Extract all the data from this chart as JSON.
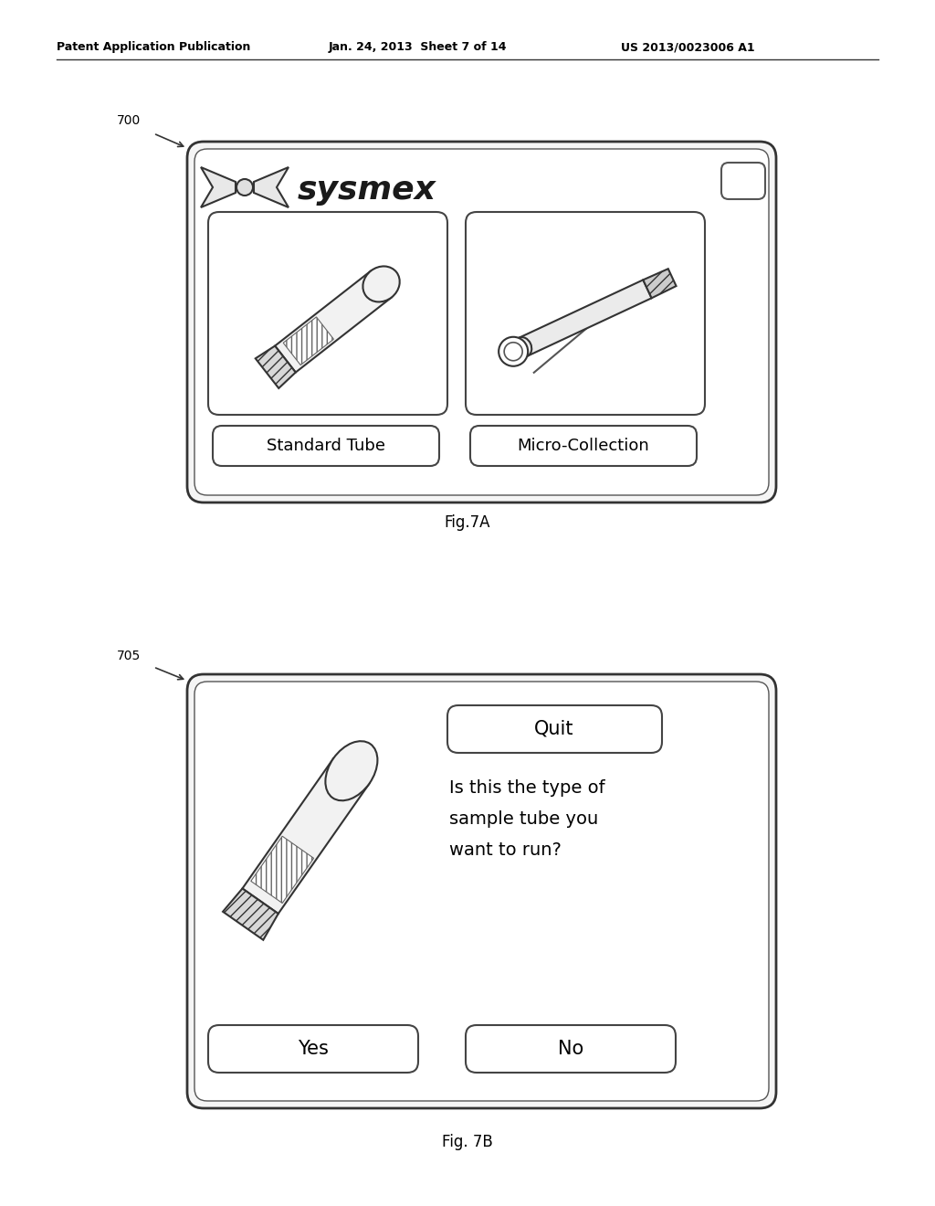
{
  "bg_color": "#ffffff",
  "header_text": "Patent Application Publication",
  "header_date": "Jan. 24, 2013  Sheet 7 of 14",
  "header_patent": "US 2013/0023006 A1",
  "fig7a_label": "Fig.7A",
  "fig7b_label": "Fig. 7B",
  "label_700": "700",
  "label_705": "705",
  "outline_color": "#333333",
  "text_color": "#000000",
  "light_gray": "#cccccc",
  "medium_gray": "#888888",
  "dark_gray": "#555555"
}
